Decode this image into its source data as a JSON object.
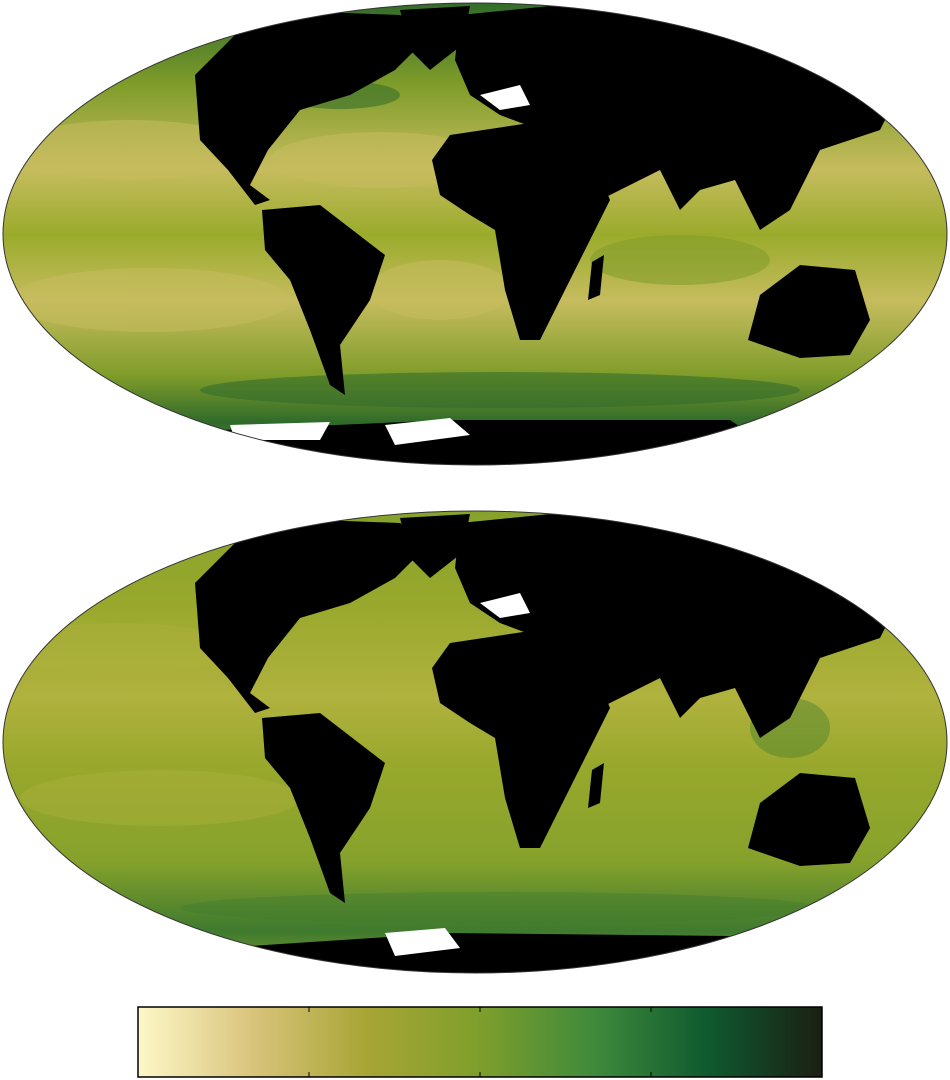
{
  "figure": {
    "projection": "mollweide",
    "panels": [
      {
        "id": "top",
        "ocean_pattern": "strong-contrast",
        "colors": {
          "ocean_base": "#9aab2c",
          "ocean_light": "#c6bc5e",
          "ocean_mid": "#7f9c2a",
          "ocean_dark": "#2f6a2a",
          "land": "#000000",
          "ice": "#ffffff",
          "frame": "#333333"
        }
      },
      {
        "id": "bottom",
        "ocean_pattern": "uniform",
        "colors": {
          "ocean_base": "#98a82c",
          "ocean_light": "#b0b23e",
          "ocean_mid": "#86a22c",
          "ocean_dark": "#3f7a2e",
          "land": "#000000",
          "ice": "#ffffff",
          "frame": "#333333"
        }
      }
    ],
    "colorbar": {
      "colormap": [
        "#fdf8c8",
        "#d9c47c",
        "#a8a535",
        "#7e9e2b",
        "#3f8a3c",
        "#0f5a2f",
        "#1b1f14"
      ],
      "tick_count": 5,
      "tick_labels": []
    }
  }
}
